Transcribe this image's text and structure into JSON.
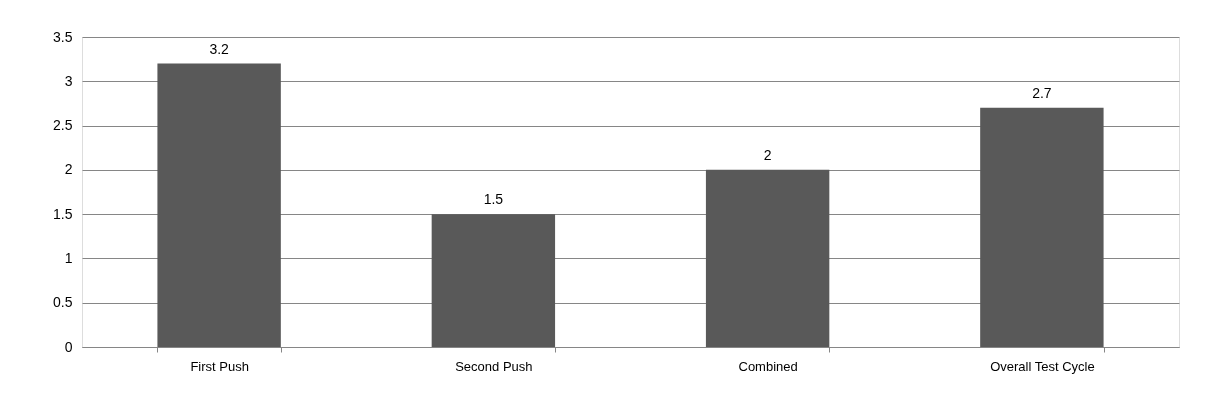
{
  "chart_data": {
    "type": "bar",
    "categories": [
      "First Push",
      "Second Push",
      "Combined",
      "Overall Test Cycle"
    ],
    "values": [
      3.2,
      1.5,
      2,
      2.7
    ],
    "color": "#595959",
    "ylim": [
      0,
      3.5
    ],
    "yticks": [
      0,
      0.5,
      1,
      1.5,
      2,
      2.5,
      3,
      3.5
    ],
    "grid": "y",
    "data_labels": true
  }
}
